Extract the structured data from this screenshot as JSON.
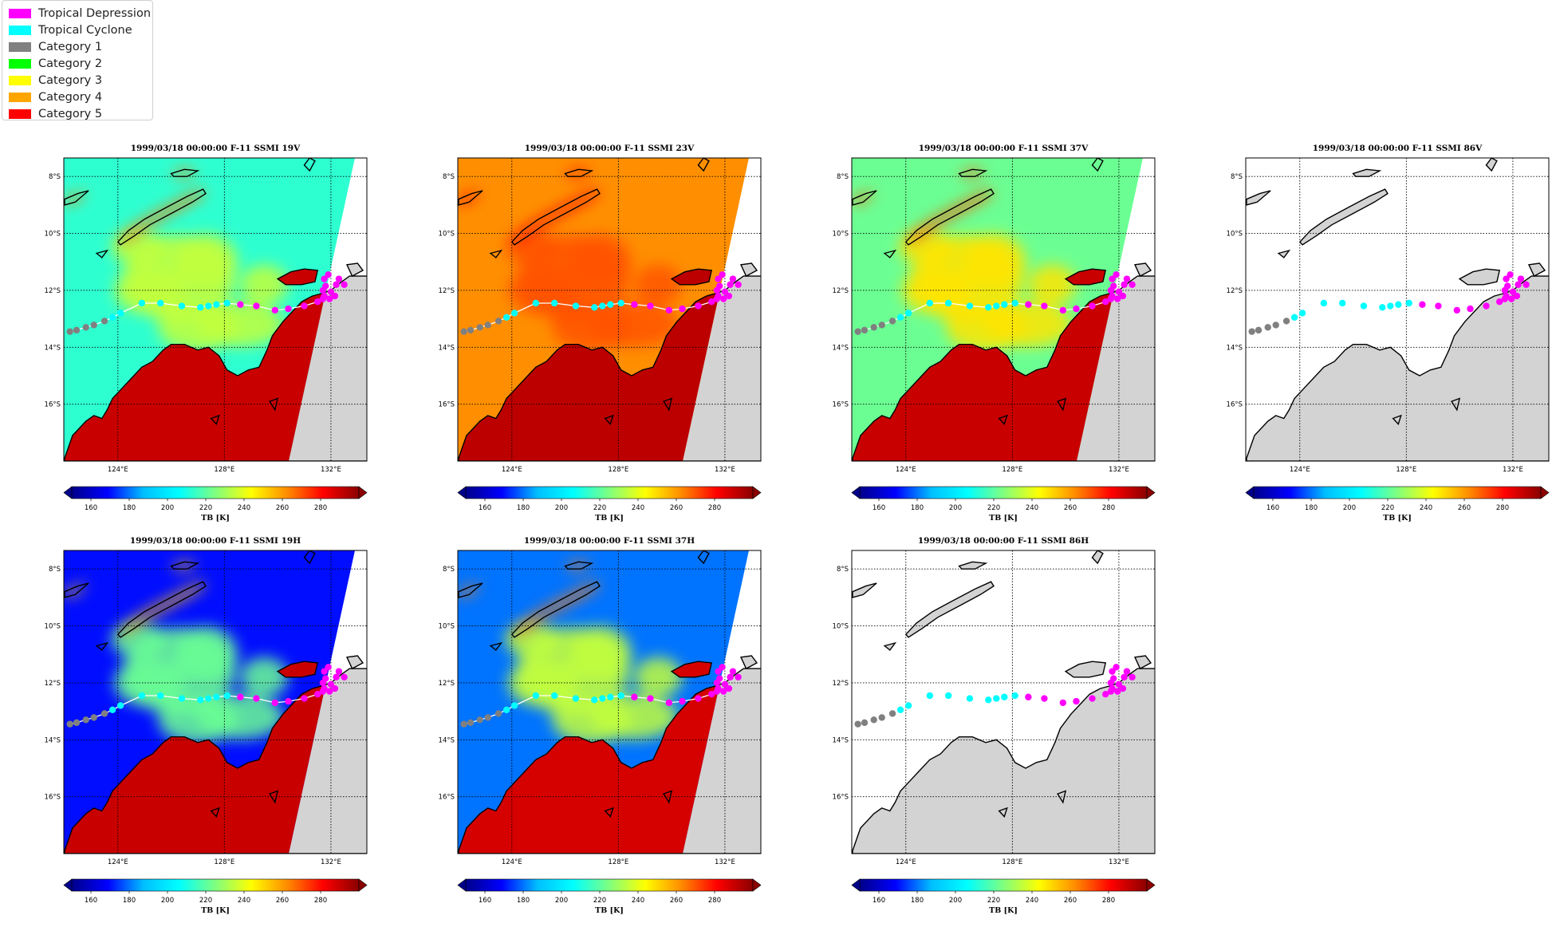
{
  "legend": {
    "items": [
      {
        "label": "Tropical Depression",
        "color": "#ff00ff"
      },
      {
        "label": "Tropical Cyclone",
        "color": "#00ffff"
      },
      {
        "label": "Category 1",
        "color": "#808080"
      },
      {
        "label": "Category 2",
        "color": "#00ff00"
      },
      {
        "label": "Category 3",
        "color": "#ffff00"
      },
      {
        "label": "Category 4",
        "color": "#ffa500"
      },
      {
        "label": "Category 5",
        "color": "#ff0000"
      }
    ]
  },
  "map_axes": {
    "lon_ticks": [
      "124°E",
      "128°E",
      "132°E"
    ],
    "lat_ticks": [
      "8°S",
      "10°S",
      "12°S",
      "14°S",
      "16°S"
    ]
  },
  "colorbar": {
    "ticks": [
      "160",
      "180",
      "200",
      "220",
      "240",
      "260",
      "280"
    ],
    "label": "TB [K]",
    "range": [
      150,
      300
    ],
    "colormap": [
      "#00008b",
      "#0000ff",
      "#00bfff",
      "#00ffff",
      "#7fff7f",
      "#ffff00",
      "#ff8c00",
      "#ff0000",
      "#8b0000"
    ]
  },
  "track": {
    "points": [
      {
        "lon": 122.2,
        "lat": -13.45,
        "stage": "Category 1"
      },
      {
        "lon": 122.45,
        "lat": -13.4,
        "stage": "Category 1"
      },
      {
        "lon": 122.8,
        "lat": -13.3,
        "stage": "Category 1"
      },
      {
        "lon": 123.1,
        "lat": -13.22,
        "stage": "Category 1"
      },
      {
        "lon": 123.5,
        "lat": -13.08,
        "stage": "Category 1"
      },
      {
        "lon": 123.8,
        "lat": -12.95,
        "stage": "Tropical Cyclone"
      },
      {
        "lon": 124.1,
        "lat": -12.8,
        "stage": "Tropical Cyclone"
      },
      {
        "lon": 124.9,
        "lat": -12.45,
        "stage": "Tropical Cyclone"
      },
      {
        "lon": 125.6,
        "lat": -12.45,
        "stage": "Tropical Cyclone"
      },
      {
        "lon": 126.4,
        "lat": -12.55,
        "stage": "Tropical Cyclone"
      },
      {
        "lon": 127.1,
        "lat": -12.6,
        "stage": "Tropical Cyclone"
      },
      {
        "lon": 127.4,
        "lat": -12.55,
        "stage": "Tropical Cyclone"
      },
      {
        "lon": 127.7,
        "lat": -12.5,
        "stage": "Tropical Cyclone"
      },
      {
        "lon": 128.1,
        "lat": -12.45,
        "stage": "Tropical Cyclone"
      },
      {
        "lon": 128.6,
        "lat": -12.5,
        "stage": "Tropical Depression"
      },
      {
        "lon": 129.2,
        "lat": -12.55,
        "stage": "Tropical Depression"
      },
      {
        "lon": 129.9,
        "lat": -12.7,
        "stage": "Tropical Depression"
      },
      {
        "lon": 130.4,
        "lat": -12.65,
        "stage": "Tropical Depression"
      },
      {
        "lon": 131.0,
        "lat": -12.55,
        "stage": "Tropical Depression"
      },
      {
        "lon": 131.5,
        "lat": -12.4,
        "stage": "Tropical Depression"
      },
      {
        "lon": 131.7,
        "lat": -12.3,
        "stage": "Tropical Depression"
      },
      {
        "lon": 131.95,
        "lat": -12.3,
        "stage": "Tropical Depression"
      },
      {
        "lon": 132.15,
        "lat": -12.2,
        "stage": "Tropical Depression"
      },
      {
        "lon": 132.0,
        "lat": -12.05,
        "stage": "Tropical Depression"
      },
      {
        "lon": 131.8,
        "lat": -11.85,
        "stage": "Tropical Depression"
      },
      {
        "lon": 132.2,
        "lat": -11.8,
        "stage": "Tropical Depression"
      },
      {
        "lon": 132.5,
        "lat": -11.8,
        "stage": "Tropical Depression"
      },
      {
        "lon": 132.3,
        "lat": -11.6,
        "stage": "Tropical Depression"
      },
      {
        "lon": 131.9,
        "lat": -11.45,
        "stage": "Tropical Depression"
      },
      {
        "lon": 131.75,
        "lat": -11.6,
        "stage": "Tropical Depression"
      },
      {
        "lon": 131.7,
        "lat": -12.0,
        "stage": "Tropical Depression"
      },
      {
        "lon": 131.75,
        "lat": -12.2,
        "stage": "Tropical Depression"
      }
    ]
  },
  "panels": [
    {
      "title": "1999/03/18 00:00:00  F-11 SSMI 19V",
      "has_data": true,
      "swath": "v19"
    },
    {
      "title": "1999/03/18 00:00:00  F-11 SSMI 23V",
      "has_data": true,
      "swath": "v23"
    },
    {
      "title": "1999/03/18 00:00:00  F-11 SSMI 37V",
      "has_data": true,
      "swath": "v37"
    },
    {
      "title": "1999/03/18 00:00:00  F-11 SSMI 86V",
      "has_data": false,
      "swath": "none"
    },
    {
      "title": "1999/03/18 00:00:00  F-11 SSMI 19H",
      "has_data": true,
      "swath": "h19"
    },
    {
      "title": "1999/03/18 00:00:00  F-11 SSMI 37H",
      "has_data": true,
      "swath": "h37"
    },
    {
      "title": "1999/03/18 00:00:00  F-11 SSMI 86H",
      "has_data": false,
      "swath": "none"
    }
  ]
}
